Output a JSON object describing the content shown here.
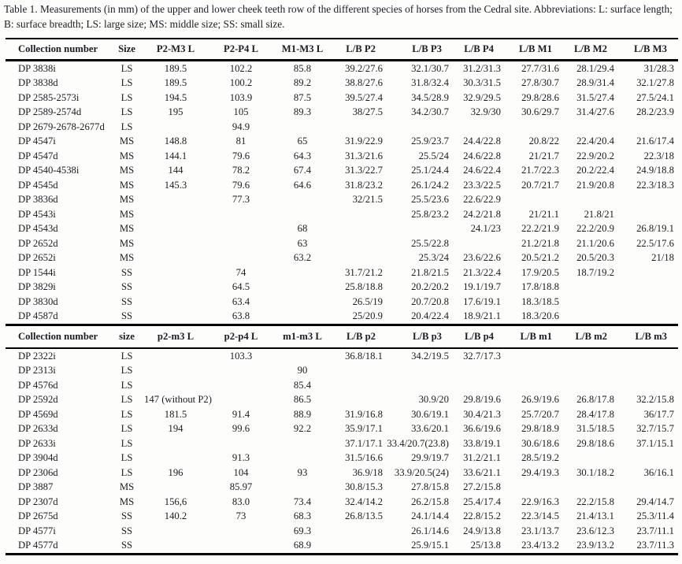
{
  "caption": "Table 1. Measurements (in mm) of the upper and lower cheek teeth row of the different species of horses from the Cedral site. Abbreviations: L: surface length; B: surface breadth; LS: large size; MS: middle size; SS: small size.",
  "colors": {
    "ink": "#1c1c24",
    "paper": "#fdfdfb",
    "rule": "#000000"
  },
  "upper_table": {
    "headers": [
      "Collection number",
      "Size",
      "P2-M3 L",
      "P2-P4 L",
      "M1-M3 L",
      "L/B P2",
      "L/B P3",
      "L/B P4",
      "L/B M1",
      "L/B M2",
      "L/B M3"
    ],
    "rows": [
      [
        "DP 3838i",
        "LS",
        "189.5",
        "102.2",
        "85.8",
        "39.2/27.6",
        "32.1/30.7",
        "31.2/31.3",
        "27.7/31.6",
        "28.1/29.4",
        "31/28.3"
      ],
      [
        "DP 3838d",
        "LS",
        "189.5",
        "100.2",
        "89.2",
        "38.8/27.6",
        "31.8/32.4",
        "30.3/31.5",
        "27.8/30.7",
        "28.9/31.4",
        "32.1/27.8"
      ],
      [
        "DP 2585-2573i",
        "LS",
        "194.5",
        "103.9",
        "87.5",
        "39.5/27.4",
        "34.5/28.9",
        "32.9/29.5",
        "29.8/28.6",
        "31.5/27.4",
        "27.5/24.1"
      ],
      [
        "DP 2589-2574d",
        "LS",
        "195",
        "105",
        "89.3",
        "38/27.5",
        "34.2/30.7",
        "32.9/30",
        "30.6/29.7",
        "31.4/27.6",
        "28.2/23.9"
      ],
      [
        "DP 2679-2678-2677d",
        "LS",
        "",
        "94.9",
        "",
        "",
        "",
        "",
        "",
        "",
        ""
      ],
      [
        "DP 4547i",
        "MS",
        "148.8",
        "81",
        "65",
        "31.9/22.9",
        "25.9/23.7",
        "24.4/22.8",
        "20.8/22",
        "22.4/20.4",
        "21.6/17.4"
      ],
      [
        "DP 4547d",
        "MS",
        "144.1",
        "79.6",
        "64.3",
        "31.3/21.6",
        "25.5/24",
        "24.6/22.8",
        "21/21.7",
        "22.9/20.2",
        "22.3/18"
      ],
      [
        "DP 4540-4538i",
        "MS",
        "144",
        "78.2",
        "67.4",
        "31.3/22.7",
        "25.1/24.4",
        "24.6/22.4",
        "21.7/22.3",
        "20.2/22.4",
        "24.9/18.8"
      ],
      [
        "DP 4545d",
        "MS",
        "145.3",
        "79.6",
        "64.6",
        "31.8/23.2",
        "26.1/24.2",
        "23.3/22.5",
        "20.7/21.7",
        "21.9/20.8",
        "22.3/18.3"
      ],
      [
        "DP 3836d",
        "MS",
        "",
        "77.3",
        "",
        "32/21.5",
        "25.5/23.6",
        "22.6/22.9",
        "",
        "",
        ""
      ],
      [
        "DP 4543i",
        "MS",
        "",
        "",
        "",
        "",
        "25.8/23.2",
        "24.2/21.8",
        "21/21.1",
        "21.8/21",
        ""
      ],
      [
        "DP 4543d",
        "MS",
        "",
        "",
        "68",
        "",
        "",
        "24.1/23",
        "22.2/21.9",
        "22.2/20.9",
        "26.8/19.1"
      ],
      [
        "DP 2652d",
        "MS",
        "",
        "",
        "63",
        "",
        "25.5/22.8",
        "",
        "21.2/21.8",
        "21.1/20.6",
        "22.5/17.6"
      ],
      [
        "DP 2652i",
        "MS",
        "",
        "",
        "63.2",
        "",
        "25.3/24",
        "23.6/22.6",
        "20.5/21.2",
        "20.5/20.3",
        "21/18"
      ],
      [
        "DP 1544i",
        "SS",
        "",
        "74",
        "",
        "31.7/21.2",
        "21.8/21.5",
        "21.3/22.4",
        "17.9/20.5",
        "18.7/19.2",
        ""
      ],
      [
        "DP 3829i",
        "SS",
        "",
        "64.5",
        "",
        "25.8/18.8",
        "20.2/20.2",
        "19.1/19.7",
        "17.8/18.8",
        "",
        ""
      ],
      [
        "DP 3830d",
        "SS",
        "",
        "63.4",
        "",
        "26.5/19",
        "20.7/20.8",
        "17.6/19.1",
        "18.3/18.5",
        "",
        ""
      ],
      [
        "DP 4587d",
        "SS",
        "",
        "63.8",
        "",
        "25/20.9",
        "20.4/22.4",
        "18.9/21.1",
        "18.3/20.6",
        "",
        ""
      ]
    ]
  },
  "lower_table": {
    "headers": [
      "Collection number",
      "size",
      "p2-m3 L",
      "p2-p4 L",
      "m1-m3 L",
      "L/B p2",
      "L/B p3",
      "L/B p4",
      "L/B m1",
      "L/B m2",
      "L/B m3"
    ],
    "rows": [
      [
        "DP 2322i",
        "LS",
        "",
        "103.3",
        "",
        "36.8/18.1",
        "34.2/19.5",
        "32.7/17.3",
        "",
        "",
        ""
      ],
      [
        "DP 2313i",
        "LS",
        "",
        "",
        "90",
        "",
        "",
        "",
        "",
        "",
        ""
      ],
      [
        "DP 4576d",
        "LS",
        "",
        "",
        "85.4",
        "",
        "",
        "",
        "",
        "",
        ""
      ],
      [
        "DP 2592d",
        "LS",
        "147 (without P2)",
        "",
        "86.5",
        "",
        "30.9/20",
        "29.8/19.6",
        "26.9/19.6",
        "26.8/17.8",
        "32.2/15.8"
      ],
      [
        "DP 4569d",
        "LS",
        "181.5",
        "91.4",
        "88.9",
        "31.9/16.8",
        "30.6/19.1",
        "30.4/21.3",
        "25.7/20.7",
        "28.4/17.8",
        "36/17.7"
      ],
      [
        "DP 2633d",
        "LS",
        "194",
        "99.6",
        "92.2",
        "35.9/17.1",
        "33.6/20.1",
        "36.6/19.6",
        "29.8/18.9",
        "31.5/18.5",
        "32.7/15.7"
      ],
      [
        "DP 2633i",
        "LS",
        "",
        "",
        "",
        "37.1/17.1",
        "33.4/20.7(23.8)",
        "33.8/19.1",
        "30.6/18.6",
        "29.8/18.6",
        "37.1/15.1"
      ],
      [
        "DP 3904d",
        "LS",
        "",
        "91.3",
        "",
        "31.5/16.6",
        "29.9/19.7",
        "31.2/21.1",
        "28.5/19.2",
        "",
        ""
      ],
      [
        "DP 2306d",
        "LS",
        "196",
        "104",
        "93",
        "36.9/18",
        "33.9/20.5(24)",
        "33.6/21.1",
        "29.4/19.3",
        "30.1/18.2",
        "36/16.1"
      ],
      [
        "DP 3887",
        "MS",
        "",
        "85.97",
        "",
        "30.8/15.3",
        "27.8/15.8",
        "27.2/15.8",
        "",
        "",
        ""
      ],
      [
        "DP 2307d",
        "MS",
        "156,6",
        "83.0",
        "73.4",
        "32.4/14.2",
        "26.2/15.8",
        "25.4/17.4",
        "22.9/16.3",
        "22.2/15.8",
        "29.4/14.7"
      ],
      [
        "DP 2675d",
        "SS",
        "140.2",
        "73",
        "68.3",
        "26.8/13.5",
        "24.1/14.4",
        "22.8/15.2",
        "22.3/14.5",
        "21.4/13.1",
        "25.3/11.4"
      ],
      [
        "DP 4577i",
        "SS",
        "",
        "",
        "69.3",
        "",
        "26.1/14.6",
        "24.9/13.8",
        "23.1/13.7",
        "23.6/12.3",
        "23.7/11.1"
      ],
      [
        "DP 4577d",
        "SS",
        "",
        "",
        "68.9",
        "",
        "25.9/15.1",
        "25/13.8",
        "23.4/13.2",
        "23.9/13.2",
        "23.7/11.3"
      ]
    ]
  }
}
